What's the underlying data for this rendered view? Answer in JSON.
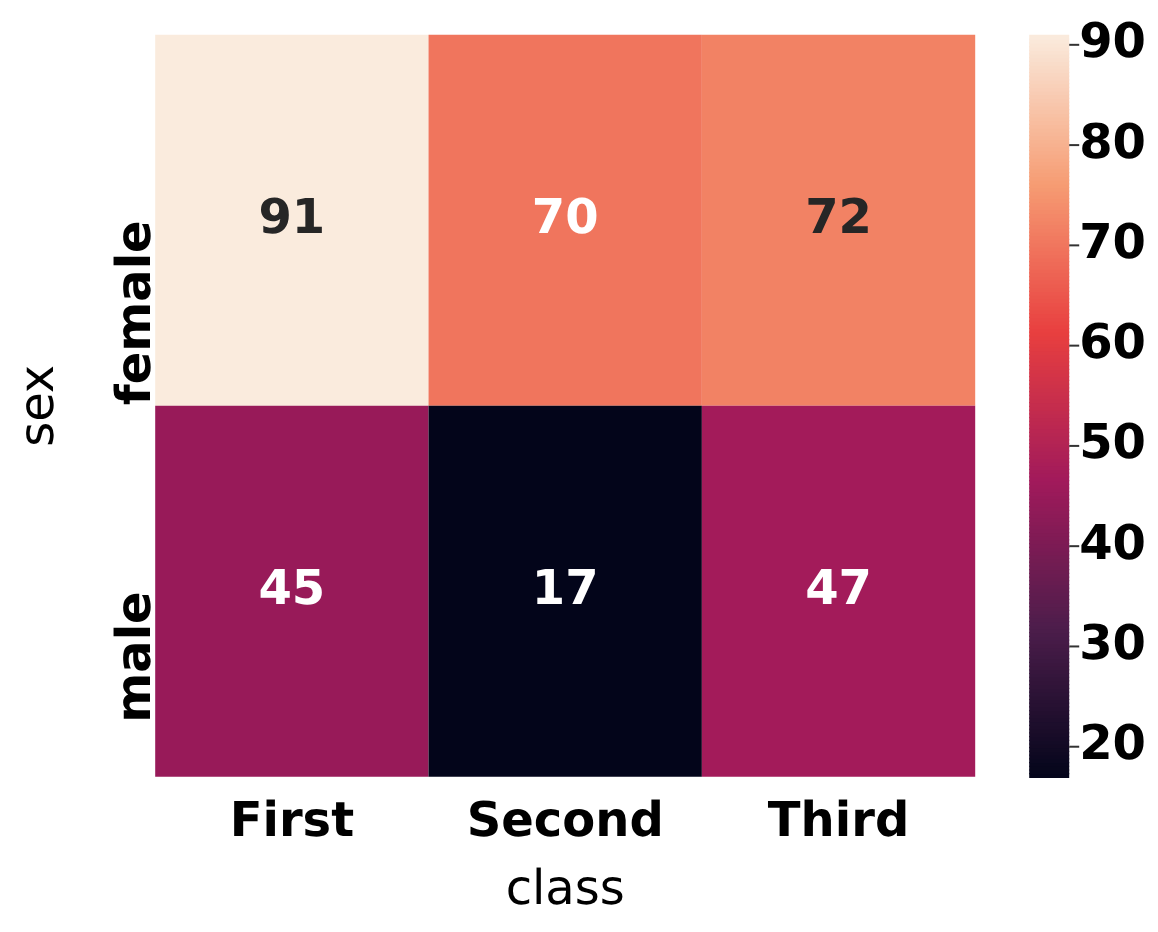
{
  "chart_data": {
    "type": "heatmap",
    "xlabel": "class",
    "ylabel": "sex",
    "categories": [
      "First",
      "Second",
      "Third"
    ],
    "y_categories": [
      "female",
      "male"
    ],
    "cells": [
      [
        91,
        70,
        72
      ],
      [
        45,
        17,
        47
      ]
    ],
    "data_labels": true,
    "clim": [
      17,
      91
    ],
    "cticks": [
      20,
      30,
      40,
      50,
      60,
      70,
      80,
      90
    ],
    "grid": false,
    "legend": false
  }
}
